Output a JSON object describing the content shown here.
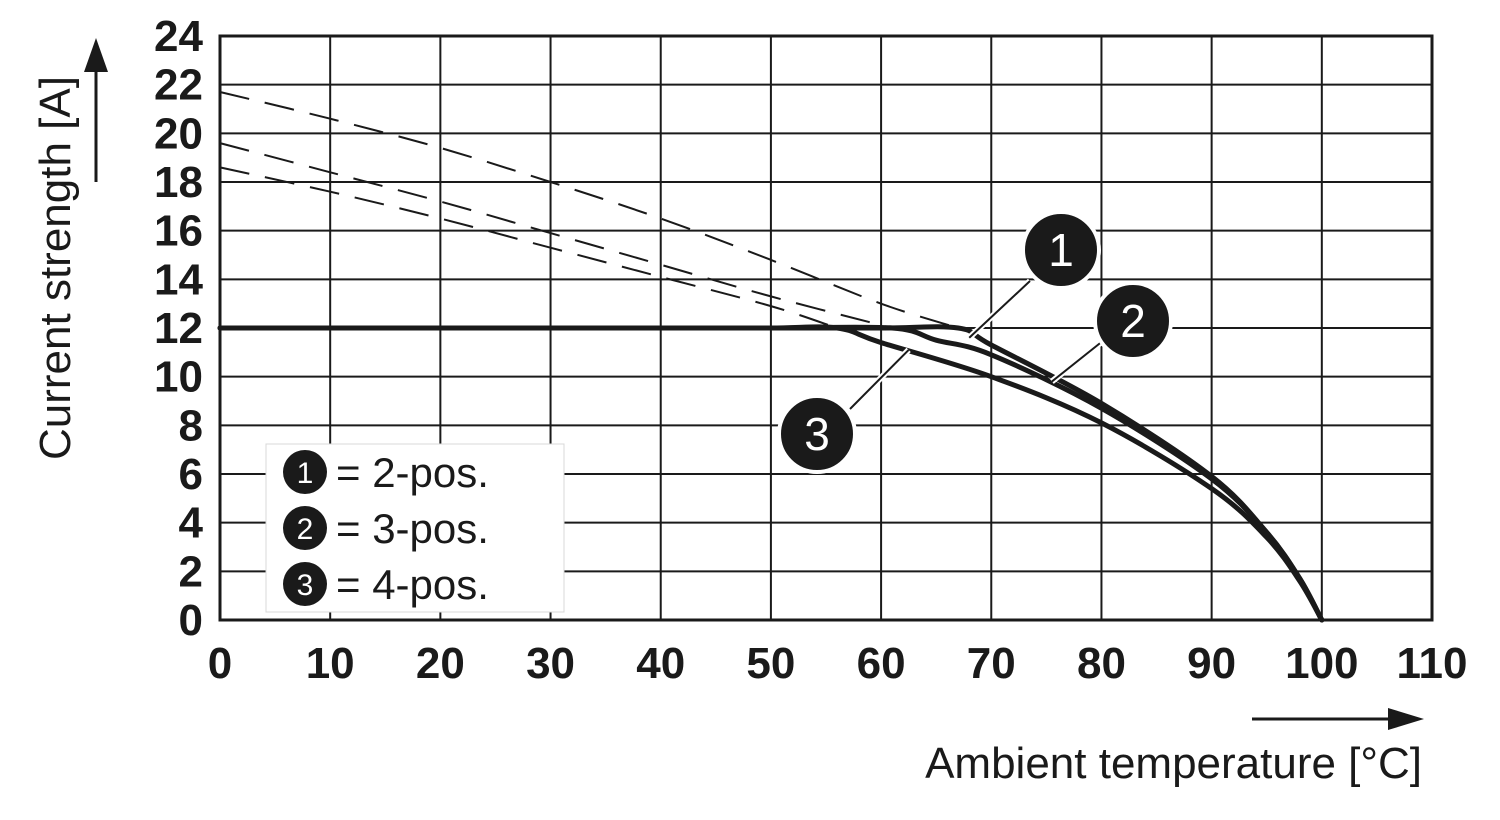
{
  "chart_data": {
    "type": "line",
    "xlabel": "Ambient temperature [°C]",
    "ylabel": "Current strength [A]",
    "xlim": [
      0,
      110
    ],
    "ylim": [
      0,
      24
    ],
    "x_ticks": [
      "0",
      "10",
      "20",
      "30",
      "40",
      "50",
      "60",
      "70",
      "80",
      "90",
      "100",
      "110"
    ],
    "y_ticks": [
      "0",
      "2",
      "4",
      "6",
      "8",
      "10",
      "12",
      "14",
      "16",
      "18",
      "20",
      "22",
      "24"
    ],
    "grid": true,
    "legend_placement": "bottom-left",
    "line_color": "#1a1a1a",
    "series": [
      {
        "marker": "1",
        "legend_label": "= 2-pos.",
        "x": [
          0,
          10,
          20,
          30,
          40,
          50,
          60,
          67,
          70,
          80,
          90,
          95,
          98,
          100
        ],
        "y": [
          12,
          12,
          12,
          12,
          12,
          12,
          12,
          12,
          11.3,
          8.9,
          5.9,
          3.6,
          1.7,
          0
        ],
        "derating_x": [
          0,
          10,
          20,
          30,
          40,
          50,
          60,
          67
        ],
        "derating_y": [
          21.7,
          20.6,
          19.4,
          18,
          16.5,
          14.8,
          13,
          12
        ]
      },
      {
        "marker": "2",
        "legend_label": "= 3-pos.",
        "x": [
          0,
          10,
          20,
          30,
          40,
          50,
          61,
          65,
          70,
          80,
          90,
          95,
          98,
          100
        ],
        "y": [
          12,
          12,
          12,
          12,
          12,
          12,
          12,
          11.5,
          10.9,
          8.7,
          5.8,
          3.6,
          1.7,
          0
        ],
        "derating_x": [
          0,
          10,
          20,
          30,
          40,
          50,
          61
        ],
        "derating_y": [
          19.6,
          18.4,
          17.2,
          15.9,
          14.6,
          13.3,
          12
        ]
      },
      {
        "marker": "3",
        "legend_label": "= 4-pos.",
        "x": [
          0,
          10,
          20,
          30,
          40,
          50,
          56,
          60,
          70,
          80,
          90,
          95,
          98,
          100
        ],
        "y": [
          12,
          12,
          12,
          12,
          12,
          12,
          12,
          11.4,
          10,
          8.1,
          5.4,
          3.4,
          1.6,
          0
        ],
        "derating_x": [
          0,
          10,
          20,
          30,
          40,
          50,
          56
        ],
        "derating_y": [
          18.6,
          17.6,
          16.5,
          15.3,
          14.1,
          12.9,
          12
        ]
      }
    ],
    "callouts": [
      {
        "marker": "1",
        "at_x": 68,
        "at_y": 11.6
      },
      {
        "marker": "2",
        "at_x": 75.5,
        "at_y": 9.8
      },
      {
        "marker": "3",
        "at_x": 62.5,
        "at_y": 11.1
      }
    ]
  }
}
